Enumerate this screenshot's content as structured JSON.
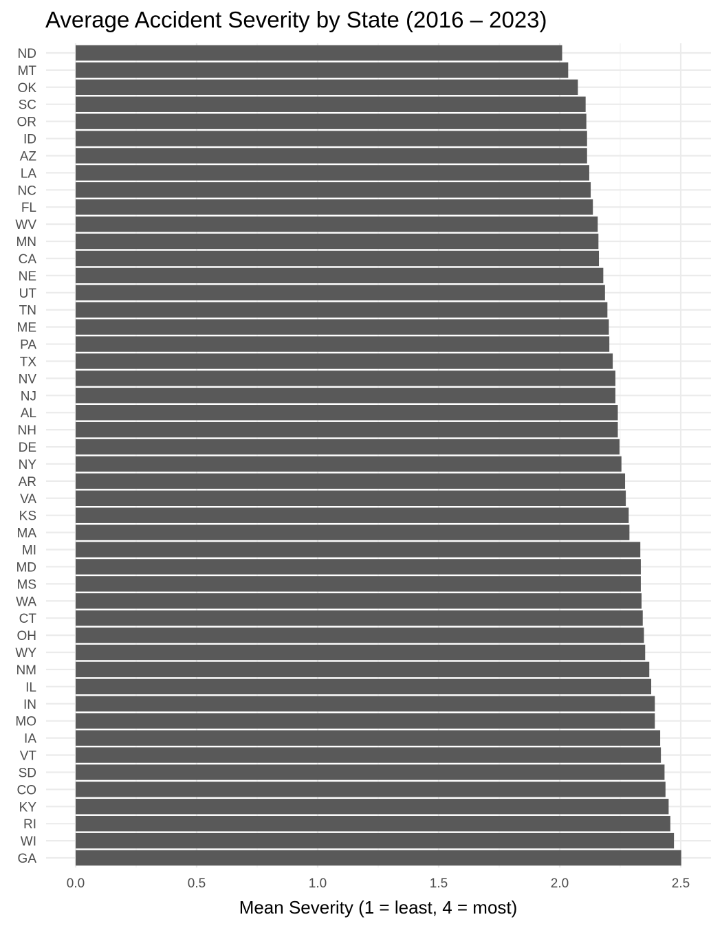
{
  "chart_data": {
    "type": "bar",
    "orientation": "horizontal",
    "title": "Average Accident Severity by State (2016 – 2023)",
    "xlabel": "Mean Severity (1 = least, 4 = most)",
    "ylabel": "",
    "xlim": [
      0,
      2.625
    ],
    "xticks": [
      "0.0",
      "0.5",
      "1.0",
      "1.5",
      "2.0",
      "2.5"
    ],
    "xtick_values": [
      0,
      0.5,
      1.0,
      1.5,
      2.0,
      2.5
    ],
    "grid": true,
    "bar_color": "#595959",
    "grid_color": "#ebebeb",
    "categories": [
      "ND",
      "MT",
      "OK",
      "SC",
      "OR",
      "ID",
      "AZ",
      "LA",
      "NC",
      "FL",
      "WV",
      "MN",
      "CA",
      "NE",
      "UT",
      "TN",
      "ME",
      "PA",
      "TX",
      "NV",
      "NJ",
      "AL",
      "NH",
      "DE",
      "NY",
      "AR",
      "VA",
      "KS",
      "MA",
      "MI",
      "MD",
      "MS",
      "WA",
      "CT",
      "OH",
      "WY",
      "NM",
      "IL",
      "IN",
      "MO",
      "IA",
      "VT",
      "SD",
      "CO",
      "KY",
      "RI",
      "WI",
      "GA"
    ],
    "values": [
      2.01,
      2.035,
      2.075,
      2.107,
      2.11,
      2.113,
      2.113,
      2.122,
      2.128,
      2.137,
      2.157,
      2.16,
      2.162,
      2.18,
      2.187,
      2.197,
      2.203,
      2.205,
      2.219,
      2.23,
      2.23,
      2.24,
      2.24,
      2.247,
      2.255,
      2.27,
      2.273,
      2.285,
      2.288,
      2.333,
      2.335,
      2.335,
      2.338,
      2.343,
      2.348,
      2.353,
      2.37,
      2.378,
      2.393,
      2.393,
      2.415,
      2.418,
      2.433,
      2.437,
      2.45,
      2.457,
      2.472,
      2.502
    ]
  }
}
